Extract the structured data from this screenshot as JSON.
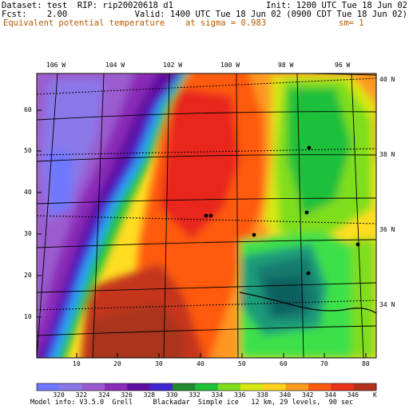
{
  "header": {
    "line1_left": "Dataset: test  RIP: rip20020618 d1",
    "line1_right": "Init: 1200 UTC Tue 18 Jun 02",
    "line2_left": "Fcst:    2.00",
    "line2_right": "Valid: 1400 UTC Tue 18 Jun 02 (0900 CDT Tue 18 Jun 02)",
    "line3_left": "Equivalent potential temperature",
    "line3_mid": "at sigma = 0.983",
    "line3_right": "sm= 1"
  },
  "top_lon_labels": [
    "106 W",
    "104 W",
    "102 W",
    "100 W",
    "98 W",
    "96 W"
  ],
  "right_lat_labels": [
    "40 N",
    "38 N",
    "36 N",
    "34 N"
  ],
  "left_grid_labels": [
    "60",
    "50",
    "40",
    "30",
    "20",
    "10"
  ],
  "bottom_grid_labels": [
    "10",
    "20",
    "30",
    "40",
    "50",
    "60",
    "70",
    "80"
  ],
  "colorbar": {
    "values": [
      "320",
      "322",
      "324",
      "326",
      "328",
      "330",
      "332",
      "334",
      "336",
      "338",
      "340",
      "342",
      "344",
      "346"
    ],
    "unit": "K",
    "colors": [
      "#6e78ff",
      "#8a78e8",
      "#9b5bd0",
      "#8a2cb8",
      "#6010a0",
      "#3f27d0",
      "#1f8a2f",
      "#1fc03a",
      "#7fde1e",
      "#d8e812",
      "#ffd21e",
      "#ff9b1e",
      "#ff5a10",
      "#e8321c",
      "#b4321c"
    ]
  },
  "footer": "Model info: V3.5.0  Grell     Blackadar  Simple ice   12 km, 29 levels,  90 sec",
  "colors": {
    "header_orange": "#b35a00",
    "frame": "#000000"
  }
}
